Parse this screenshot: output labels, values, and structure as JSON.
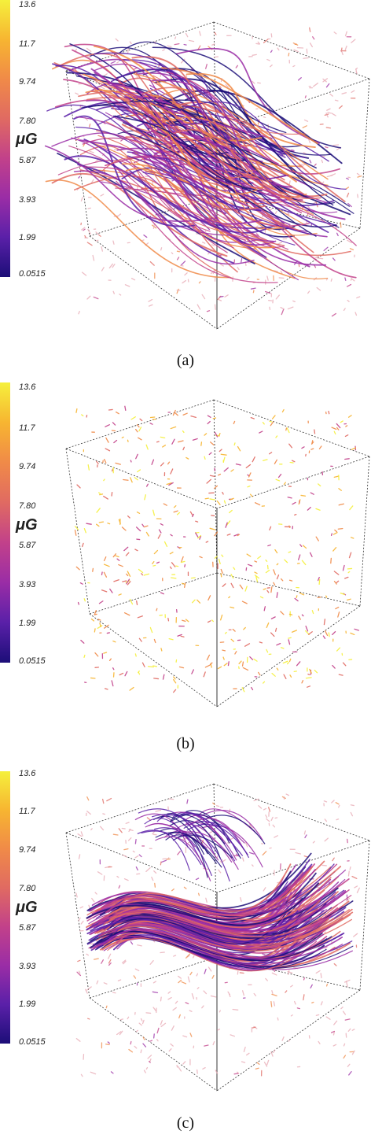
{
  "colorbar": {
    "ticks": [
      "13.6",
      "11.7",
      "9.74",
      "7.80",
      "5.87",
      "3.93",
      "1.99",
      "0.0515"
    ],
    "unit": "μG",
    "colors": [
      "#f5f03c",
      "#f7b531",
      "#f08a48",
      "#e06a62",
      "#c2418a",
      "#9a2da6",
      "#5a20a8",
      "#1c0e78"
    ]
  },
  "panels": [
    {
      "caption": "(a)",
      "style": "tangled"
    },
    {
      "caption": "(b)",
      "style": "sparse"
    },
    {
      "caption": "(c)",
      "style": "smooth"
    }
  ]
}
